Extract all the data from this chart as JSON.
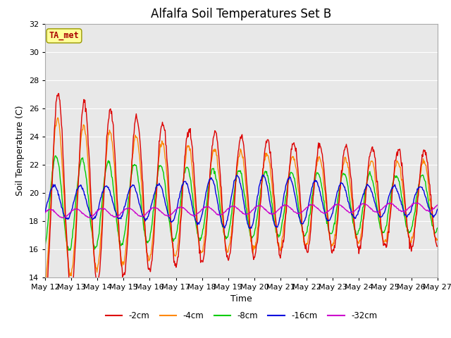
{
  "title": "Alfalfa Soil Temperatures Set B",
  "xlabel": "Time",
  "ylabel": "Soil Temperature (C)",
  "ylim": [
    14,
    32
  ],
  "yticks": [
    14,
    16,
    18,
    20,
    22,
    24,
    26,
    28,
    30,
    32
  ],
  "colors": {
    "-2cm": "#dd0000",
    "-4cm": "#ff8800",
    "-8cm": "#00cc00",
    "-16cm": "#0000dd",
    "-32cm": "#cc00cc"
  },
  "legend_labels": [
    "-2cm",
    "-4cm",
    "-8cm",
    "-16cm",
    "-32cm"
  ],
  "plot_bg_color": "#e8e8e8",
  "fig_bg_color": "#ffffff",
  "ta_met_box_color": "#ffff99",
  "ta_met_text_color": "#aa0000",
  "grid_color": "#ffffff",
  "title_fontsize": 12,
  "axis_label_fontsize": 9,
  "tick_label_fontsize": 8,
  "n_days": 15,
  "start_day": 12,
  "start_month": "May"
}
